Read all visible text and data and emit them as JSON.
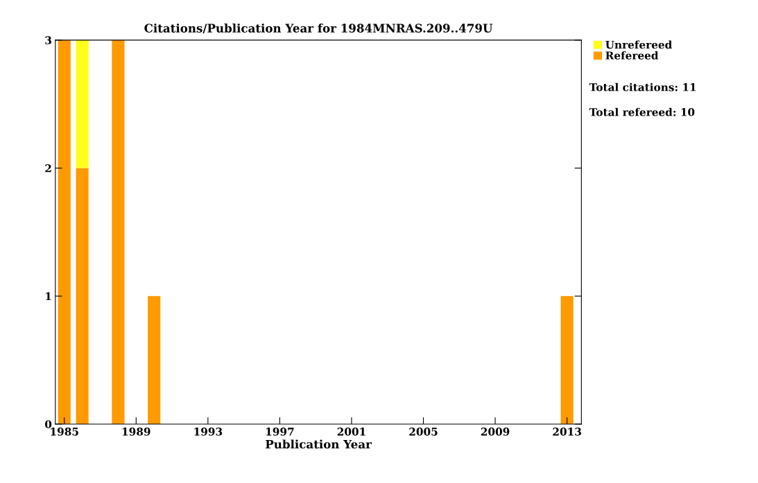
{
  "chart_data": {
    "type": "bar",
    "title": "Citations/Publication Year for 1984MNRAS.209..479U",
    "xlabel": "Publication Year",
    "x": [
      1985,
      1986,
      1988,
      1990,
      2013
    ],
    "series": [
      {
        "name": "Refereed",
        "color": "#ff9a00",
        "values": [
          3,
          2,
          3,
          1,
          1
        ]
      },
      {
        "name": "Unrefereed",
        "color": "#ffff1a",
        "values": [
          0,
          1,
          0,
          0,
          0
        ]
      }
    ],
    "stacked": true,
    "xlim": [
      1984.5,
      2013.8
    ],
    "xticks": [
      1985,
      1989,
      1993,
      1997,
      2001,
      2005,
      2009,
      2013
    ],
    "ylim": [
      0,
      3
    ],
    "yticks": [
      0,
      1,
      2,
      3
    ],
    "annotations": [
      "Total citations: 11",
      "Total refereed: 10"
    ],
    "legend": "top right",
    "grid": false
  }
}
